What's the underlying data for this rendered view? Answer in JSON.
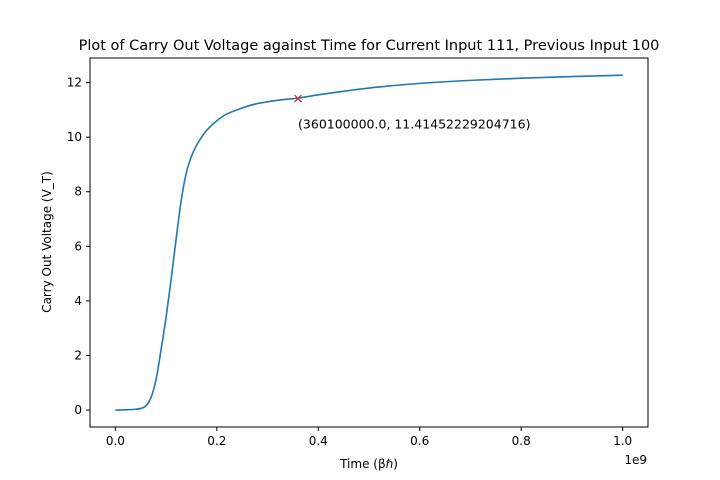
{
  "chart_data": {
    "type": "line",
    "title": "Plot of Carry Out Voltage against Time for Current Input 111, Previous Input 100",
    "xlabel": "Time (βℏ)",
    "ylabel": "Carry Out Voltage (V_T)",
    "x_offset_label": "1e9",
    "xlim": [
      -0.05,
      1.05
    ],
    "ylim": [
      -0.62,
      12.9
    ],
    "x_ticks": [
      0.0,
      0.2,
      0.4,
      0.6,
      0.8,
      1.0
    ],
    "x_tick_labels": [
      "0.0",
      "0.2",
      "0.4",
      "0.6",
      "0.8",
      "1.0"
    ],
    "y_ticks": [
      0,
      2,
      4,
      6,
      8,
      10,
      12
    ],
    "y_tick_labels": [
      "0",
      "2",
      "4",
      "6",
      "8",
      "10",
      "12"
    ],
    "grid": false,
    "series": [
      {
        "color": "#1f77b4",
        "x": [
          0.0,
          0.02,
          0.04,
          0.05,
          0.06,
          0.07,
          0.08,
          0.09,
          0.1,
          0.11,
          0.12,
          0.13,
          0.14,
          0.15,
          0.16,
          0.17,
          0.18,
          0.2,
          0.22,
          0.25,
          0.28,
          0.32,
          0.36,
          0.4,
          0.45,
          0.5,
          0.6,
          0.7,
          0.8,
          0.9,
          1.0
        ],
        "y": [
          0.0,
          0.01,
          0.03,
          0.06,
          0.15,
          0.45,
          1.1,
          2.2,
          3.4,
          4.8,
          6.3,
          7.7,
          8.7,
          9.3,
          9.7,
          10.0,
          10.25,
          10.6,
          10.85,
          11.07,
          11.23,
          11.35,
          11.43,
          11.55,
          11.68,
          11.8,
          11.97,
          12.08,
          12.16,
          12.22,
          12.27
        ]
      }
    ],
    "marker": {
      "x": 0.3601,
      "y": 11.41452229204716,
      "symbol": "x",
      "color": "#d62728",
      "label": "(360100000.0, 11.41452229204716)"
    }
  }
}
